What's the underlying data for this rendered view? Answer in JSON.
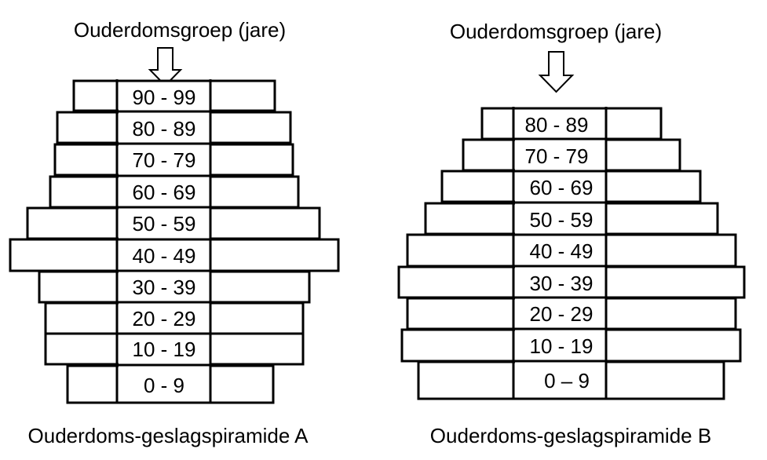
{
  "pyramid_a": {
    "header": "Ouderdomsgroep (jare)",
    "caption": "Ouderdoms-geslagspiramide A",
    "age_groups": [
      "90 - 99",
      "80 - 89",
      "70 - 79",
      "60 - 69",
      "50 - 59",
      "40 - 49",
      "30 - 39",
      "20 - 29",
      "10 - 19",
      "0 - 9"
    ]
  },
  "pyramid_b": {
    "header": "Ouderdomsgroep (jare)",
    "caption": "Ouderdoms-geslagspiramide B",
    "age_groups": [
      "80 - 89",
      "70 - 79",
      "60 - 69",
      "50 - 59",
      "40 - 49",
      "30 - 39",
      "20 - 29",
      "10 - 19",
      "0 – 9"
    ]
  }
}
